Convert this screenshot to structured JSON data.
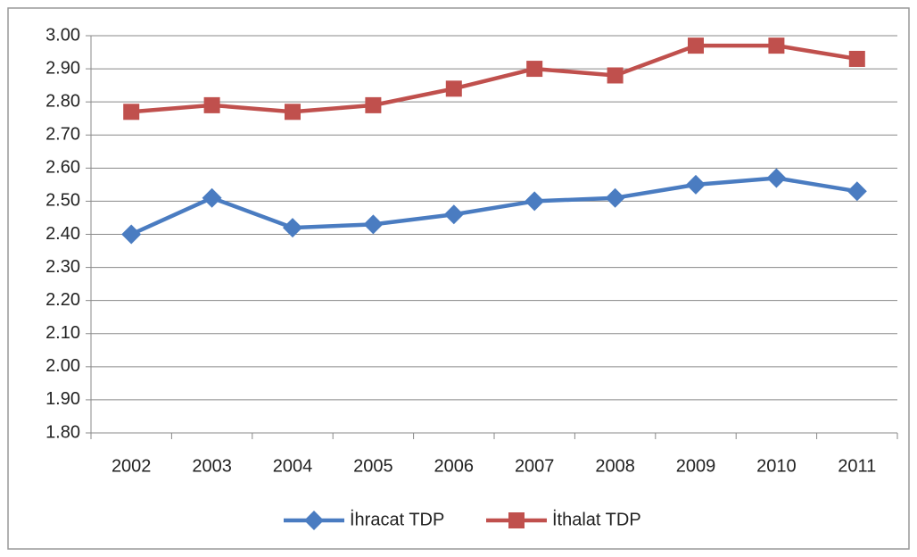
{
  "chart_data": {
    "type": "line",
    "categories": [
      "2002",
      "2003",
      "2004",
      "2005",
      "2006",
      "2007",
      "2008",
      "2009",
      "2010",
      "2011"
    ],
    "series": [
      {
        "name": "İhracat TDP",
        "color": "#4a7cc1",
        "marker": "diamond",
        "values": [
          2.4,
          2.51,
          2.42,
          2.43,
          2.46,
          2.5,
          2.51,
          2.55,
          2.57,
          2.53
        ]
      },
      {
        "name": "İthalat TDP",
        "color": "#c0504d",
        "marker": "square",
        "values": [
          2.77,
          2.79,
          2.77,
          2.79,
          2.84,
          2.9,
          2.88,
          2.97,
          2.97,
          2.93
        ]
      }
    ],
    "ylim": [
      1.8,
      3.0
    ],
    "yticks": [
      {
        "value": 1.8,
        "label": "1.80"
      },
      {
        "value": 1.9,
        "label": "1.90"
      },
      {
        "value": 2.0,
        "label": "2.00"
      },
      {
        "value": 2.1,
        "label": "2.10"
      },
      {
        "value": 2.2,
        "label": "2.20"
      },
      {
        "value": 2.3,
        "label": "2.30"
      },
      {
        "value": 2.4,
        "label": "2.40"
      },
      {
        "value": 2.5,
        "label": "2.50"
      },
      {
        "value": 2.6,
        "label": "2.60"
      },
      {
        "value": 2.7,
        "label": "2.70"
      },
      {
        "value": 2.8,
        "label": "2.80"
      },
      {
        "value": 2.9,
        "label": "2.90"
      },
      {
        "value": 3.0,
        "label": "3.00"
      }
    ],
    "grid": true,
    "legend": "bottom"
  }
}
